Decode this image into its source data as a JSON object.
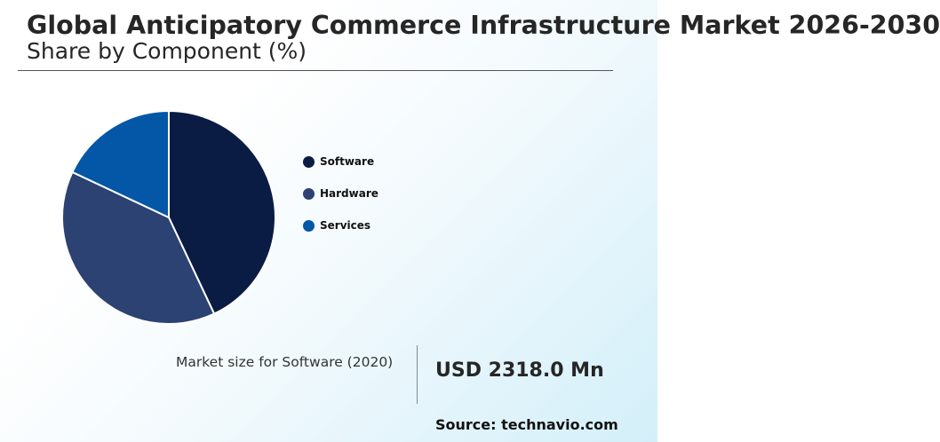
{
  "header": {
    "title": "Global Anticipatory Commerce Infrastructure Market 2026-2030",
    "subtitle": "Share by Component (%)"
  },
  "chart_data": {
    "type": "pie",
    "categories": [
      "Software",
      "Hardware",
      "Services"
    ],
    "values": [
      43,
      39,
      18
    ],
    "colors": [
      "#0a1c44",
      "#2b4272",
      "#0457a6"
    ],
    "start": "12 o'clock",
    "direction": "clockwise",
    "legend_position": "right"
  },
  "footer": {
    "market_size_label": "Market size for Software (2020)",
    "market_size_value": "USD 2318.0 Mn",
    "source": "Source: technavio.com"
  }
}
